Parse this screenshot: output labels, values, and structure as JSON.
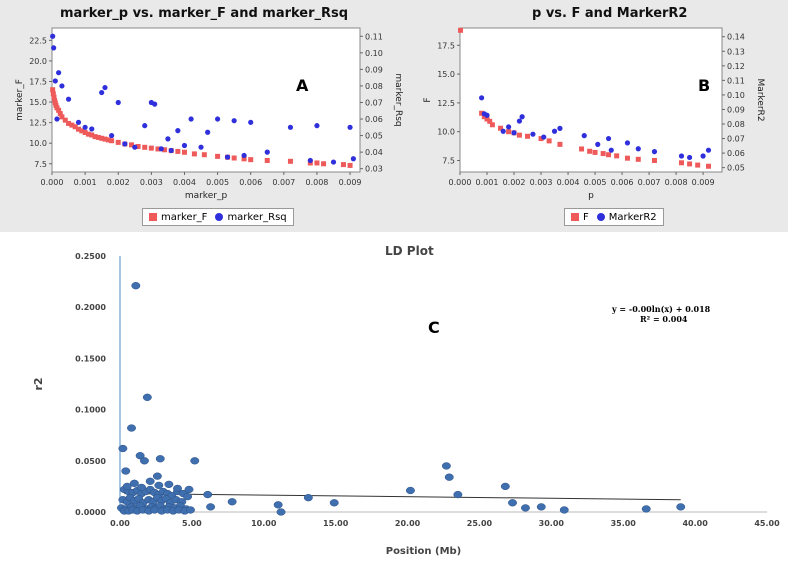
{
  "colors": {
    "red": "#ee5a5a",
    "blue": "#2f2fdc",
    "ld_point": "#3f6fae",
    "ld_axis": "#6aa0d0"
  },
  "panels": {
    "A": {
      "title": "marker_p vs. marker_F and marker_Rsq",
      "letter": "A",
      "legend": [
        "marker_F",
        "marker_Rsq"
      ]
    },
    "B": {
      "title": "p vs. F and MarkerR2",
      "letter": "B",
      "legend": [
        "F",
        "MarkerR2"
      ]
    },
    "C": {
      "title": "LD Plot",
      "letter": "C",
      "equation": "y = -0.00ln(x) + 0.018",
      "r2": "R² = 0.004"
    }
  },
  "chart_data": [
    {
      "type": "scatter",
      "title": "marker_p vs. marker_F and marker_Rsq",
      "xlabel": "marker_p",
      "ylabel": "marker_F",
      "y2label": "marker_Rsq",
      "xlim": [
        0,
        0.0093
      ],
      "ylim": [
        6.5,
        24
      ],
      "y2lim": [
        0.028,
        0.115
      ],
      "xticks": [
        "0.000",
        "0.001",
        "0.002",
        "0.003",
        "0.004",
        "0.005",
        "0.006",
        "0.007",
        "0.008",
        "0.009"
      ],
      "yticks": [
        "7.5",
        "10.0",
        "12.5",
        "15.0",
        "17.5",
        "20.0",
        "22.5"
      ],
      "y2ticks": [
        "0.03",
        "0.04",
        "0.05",
        "0.06",
        "0.07",
        "0.08",
        "0.09",
        "0.10",
        "0.11"
      ],
      "legend_position": "bottom",
      "series": [
        {
          "name": "marker_F",
          "axis": "left",
          "marker": "square",
          "x": [
            2e-05,
            4e-05,
            6e-05,
            8e-05,
            0.0001,
            0.00012,
            0.00015,
            0.0002,
            0.00025,
            0.0003,
            0.0004,
            0.0005,
            0.0006,
            0.0007,
            0.0008,
            0.0009,
            0.001,
            0.0011,
            0.0012,
            0.0013,
            0.0014,
            0.0015,
            0.0016,
            0.0017,
            0.0018,
            0.002,
            0.0022,
            0.0024,
            0.0026,
            0.0028,
            0.003,
            0.0032,
            0.0034,
            0.0036,
            0.0038,
            0.004,
            0.0043,
            0.0046,
            0.005,
            0.0053,
            0.0055,
            0.0058,
            0.006,
            0.0065,
            0.0072,
            0.0078,
            0.008,
            0.0082,
            0.0088,
            0.009
          ],
          "y": [
            16.5,
            16.0,
            15.6,
            15.2,
            14.9,
            14.6,
            14.3,
            14.0,
            13.6,
            13.2,
            12.8,
            12.4,
            12.2,
            12.0,
            11.7,
            11.5,
            11.3,
            11.1,
            11.0,
            10.8,
            10.7,
            10.6,
            10.5,
            10.4,
            10.3,
            10.1,
            9.9,
            9.8,
            9.6,
            9.5,
            9.4,
            9.3,
            9.2,
            9.1,
            9.0,
            8.9,
            8.7,
            8.6,
            8.4,
            8.3,
            8.2,
            8.1,
            8.0,
            7.9,
            7.8,
            7.6,
            7.6,
            7.5,
            7.4,
            7.3
          ]
        },
        {
          "name": "marker_Rsq",
          "axis": "right",
          "marker": "circle",
          "x": [
            2e-05,
            5e-05,
            0.0001,
            0.00015,
            0.0002,
            0.0003,
            0.0005,
            0.0008,
            0.001,
            0.0012,
            0.0015,
            0.0016,
            0.0018,
            0.002,
            0.0022,
            0.0025,
            0.0028,
            0.003,
            0.0031,
            0.0033,
            0.0035,
            0.0036,
            0.0038,
            0.004,
            0.0042,
            0.0045,
            0.0047,
            0.005,
            0.0053,
            0.0055,
            0.0058,
            0.006,
            0.0065,
            0.0072,
            0.0078,
            0.008,
            0.0085,
            0.009,
            0.0091
          ],
          "y": [
            0.11,
            0.103,
            0.083,
            0.06,
            0.088,
            0.08,
            0.072,
            0.058,
            0.055,
            0.054,
            0.076,
            0.079,
            0.05,
            0.07,
            0.045,
            0.043,
            0.056,
            0.07,
            0.069,
            0.042,
            0.048,
            0.041,
            0.053,
            0.044,
            0.06,
            0.043,
            0.052,
            0.06,
            0.037,
            0.059,
            0.038,
            0.058,
            0.04,
            0.055,
            0.035,
            0.056,
            0.034,
            0.055,
            0.036
          ]
        }
      ]
    },
    {
      "type": "scatter",
      "title": "p vs. F and MarkerR2",
      "xlabel": "p",
      "ylabel": "F",
      "y2label": "MarkerR2",
      "xlim": [
        0,
        0.0097
      ],
      "ylim": [
        6.5,
        19
      ],
      "y2lim": [
        0.047,
        0.146
      ],
      "xticks": [
        "0.000",
        "0.001",
        "0.002",
        "0.003",
        "0.004",
        "0.005",
        "0.006",
        "0.007",
        "0.008",
        "0.009"
      ],
      "yticks": [
        "7.5",
        "10.0",
        "12.5",
        "15.0",
        "17.5"
      ],
      "y2ticks": [
        "0.05",
        "0.06",
        "0.07",
        "0.08",
        "0.09",
        "0.10",
        "0.11",
        "0.12",
        "0.13",
        "0.14"
      ],
      "legend_position": "bottom",
      "series": [
        {
          "name": "F",
          "axis": "left",
          "marker": "square",
          "x": [
            2e-05,
            0.0008,
            0.0009,
            0.001,
            0.0011,
            0.0012,
            0.0015,
            0.0018,
            0.002,
            0.0022,
            0.0025,
            0.003,
            0.0033,
            0.0037,
            0.0045,
            0.0048,
            0.005,
            0.0053,
            0.0055,
            0.0058,
            0.0062,
            0.0066,
            0.0072,
            0.0082,
            0.0085,
            0.0088,
            0.0092
          ],
          "y": [
            18.8,
            11.6,
            11.3,
            11.1,
            10.9,
            10.6,
            10.3,
            10.0,
            9.9,
            9.7,
            9.6,
            9.4,
            9.2,
            8.9,
            8.5,
            8.3,
            8.2,
            8.1,
            8.0,
            7.9,
            7.7,
            7.6,
            7.5,
            7.3,
            7.2,
            7.1,
            7.0
          ]
        },
        {
          "name": "MarkerR2",
          "axis": "right",
          "marker": "circle",
          "x": [
            0.0008,
            0.0009,
            0.001,
            0.0016,
            0.0018,
            0.002,
            0.0022,
            0.0023,
            0.0027,
            0.0031,
            0.0035,
            0.0037,
            0.0046,
            0.0051,
            0.0055,
            0.0056,
            0.0062,
            0.0066,
            0.0072,
            0.0082,
            0.0085,
            0.009,
            0.0092
          ],
          "y": [
            0.098,
            0.087,
            0.086,
            0.075,
            0.078,
            0.074,
            0.082,
            0.085,
            0.073,
            0.071,
            0.075,
            0.077,
            0.072,
            0.066,
            0.07,
            0.062,
            0.067,
            0.063,
            0.061,
            0.058,
            0.057,
            0.058,
            0.062
          ]
        }
      ]
    },
    {
      "type": "scatter",
      "title": "LD Plot",
      "xlabel": "Position (Mb)",
      "ylabel": "r2",
      "xlim": [
        0,
        45
      ],
      "ylim": [
        0,
        0.25
      ],
      "xticks": [
        "0.00",
        "5.00",
        "10.00",
        "15.00",
        "20.00",
        "25.00",
        "30.00",
        "35.00",
        "40.00",
        "45.00"
      ],
      "yticks": [
        "0.0000",
        "0.0500",
        "0.1000",
        "0.1500",
        "0.2000",
        "0.2500"
      ],
      "trendline": {
        "type": "log",
        "x": [
          0.3,
          39
        ],
        "y": [
          0.018,
          0.012
        ]
      },
      "series": [
        {
          "name": "",
          "marker": "circle",
          "x": [
            1.1,
            1.9,
            0.8,
            0.2,
            1.4,
            2.8,
            1.7,
            0.4,
            2.6,
            5.2,
            0.3,
            0.6,
            0.9,
            1.2,
            1.5,
            1.8,
            2.1,
            2.4,
            2.7,
            3.0,
            3.3,
            3.6,
            4.0,
            4.4,
            4.8,
            0.2,
            0.5,
            0.7,
            1.0,
            1.3,
            1.6,
            2.0,
            2.3,
            2.6,
            2.9,
            3.2,
            3.5,
            3.9,
            4.3,
            4.7,
            0.1,
            0.4,
            0.8,
            1.1,
            1.4,
            1.9,
            2.2,
            2.5,
            2.8,
            3.1,
            3.4,
            3.8,
            4.2,
            4.6,
            0.3,
            0.6,
            0.9,
            1.2,
            1.6,
            2.0,
            2.4,
            2.9,
            3.3,
            3.7,
            4.1,
            4.5,
            4.9,
            0.5,
            1.0,
            1.5,
            2.1,
            2.7,
            3.4,
            4.0,
            6.1,
            6.3,
            7.8,
            11.0,
            11.2,
            13.1,
            14.9,
            20.2,
            22.7,
            22.9,
            23.5,
            26.8,
            27.3,
            28.2,
            29.3,
            30.9,
            36.6,
            39.0
          ],
          "y": [
            0.221,
            0.112,
            0.082,
            0.062,
            0.055,
            0.052,
            0.05,
            0.04,
            0.035,
            0.05,
            0.022,
            0.02,
            0.019,
            0.021,
            0.018,
            0.02,
            0.022,
            0.019,
            0.017,
            0.02,
            0.018,
            0.016,
            0.02,
            0.018,
            0.022,
            0.012,
            0.01,
            0.014,
            0.011,
            0.013,
            0.009,
            0.012,
            0.01,
            0.014,
            0.011,
            0.013,
            0.009,
            0.012,
            0.01,
            0.015,
            0.004,
            0.003,
            0.005,
            0.004,
            0.006,
            0.003,
            0.005,
            0.004,
            0.006,
            0.003,
            0.005,
            0.004,
            0.006,
            0.003,
            0.001,
            0.001,
            0.002,
            0.001,
            0.002,
            0.001,
            0.002,
            0.001,
            0.002,
            0.001,
            0.002,
            0.001,
            0.002,
            0.025,
            0.028,
            0.024,
            0.03,
            0.026,
            0.027,
            0.023,
            0.017,
            0.005,
            0.01,
            0.007,
            0.0,
            0.014,
            0.009,
            0.021,
            0.045,
            0.034,
            0.017,
            0.025,
            0.009,
            0.004,
            0.005,
            0.002,
            0.003,
            0.005
          ]
        }
      ]
    }
  ]
}
